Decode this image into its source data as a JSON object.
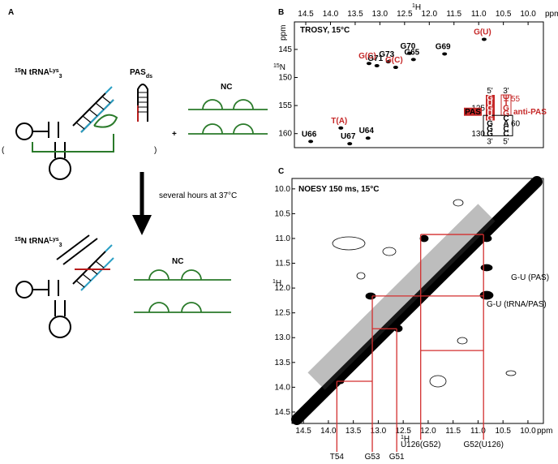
{
  "panel_a": {
    "label": "A",
    "trna_top": {
      "isotope": "15",
      "text": "N tRNA",
      "sup": "Lys",
      "sub": "3"
    },
    "pas": {
      "text": "PAS",
      "sub": "ds"
    },
    "open_paren": "(",
    "close_paren": ")",
    "plus": "+",
    "nc_top": "NC",
    "arrow_text": "several hours at 37°C",
    "trna_bottom": {
      "isotope": "15",
      "text": "N tRNA",
      "sup": "Lys",
      "sub": "3"
    },
    "nc_bottom": "NC"
  },
  "panel_b": {
    "label": "B",
    "title": "TROSY, 15°C",
    "x_label": {
      "sup": "1",
      "text": "H"
    },
    "x_unit": "ppm",
    "y_unit": "ppm",
    "y_label": {
      "sup": "15",
      "text": "N"
    },
    "xlim": [
      14.73,
      9.69
    ],
    "xticks": [
      14.5,
      {
        "value": 14,
        "label": "14.0"
      },
      13.5,
      {
        "value": 13,
        "label": "13.0"
      },
      12.5,
      {
        "value": 12,
        "label": "12.0"
      },
      11.5,
      {
        "value": 11,
        "label": "11.0"
      },
      10.5,
      {
        "value": 10,
        "label": "10.0"
      }
    ],
    "ylim": [
      140.1,
      162.5
    ],
    "yticks": [
      145,
      150,
      155,
      160
    ],
    "peaks": [
      {
        "label": "G(U)",
        "x": 10.89,
        "y": 143.2,
        "color": "#c62828"
      },
      {
        "label": "G69",
        "x": 11.69,
        "y": 145.8,
        "color": "#000000"
      },
      {
        "label": "G70",
        "x": 12.4,
        "y": 145.7,
        "color": "#000000"
      },
      {
        "label": "G65",
        "x": 12.32,
        "y": 146.8,
        "color": "#000000"
      },
      {
        "label": "G73",
        "x": 12.83,
        "y": 147.2,
        "color": "#000000"
      },
      {
        "label": "G71",
        "x": 13.06,
        "y": 147.9,
        "color": "#000000"
      },
      {
        "label": "G(C)",
        "x": 13.22,
        "y": 147.5,
        "color": "#c62828"
      },
      {
        "label": "G(C)",
        "x": 12.68,
        "y": 148.2,
        "color": "#c62828"
      },
      {
        "label": "T(A)",
        "x": 13.79,
        "y": 159.0,
        "color": "#c62828"
      },
      {
        "label": "U66",
        "x": 14.4,
        "y": 161.4,
        "color": "#000000"
      },
      {
        "label": "U67",
        "x": 13.61,
        "y": 161.8,
        "color": "#000000"
      },
      {
        "label": "U64",
        "x": 13.24,
        "y": 160.8,
        "color": "#000000"
      }
    ],
    "inset": {
      "top_left": "5'",
      "top_right": "3'",
      "bottom_left": "3'",
      "bottom_right": "5'",
      "left": [
        "G",
        "U",
        "G",
        "U",
        "G",
        "G",
        "G",
        "G"
      ],
      "right": [
        "Ψ",
        "T",
        "G",
        "G",
        "C",
        "A",
        "C",
        "C"
      ],
      "num_55": "55",
      "num_125": "125",
      "num_60": "60",
      "num_130": "130",
      "pas": "PAS",
      "anti_pas": "anti-PAS"
    }
  },
  "panel_c": {
    "label": "C",
    "title": "NOESY 150 ms, 15°C",
    "x_label": {
      "sup": "1",
      "text": "H"
    },
    "x_unit": "ppm",
    "y_label": {
      "sup": "1",
      "text": "H"
    },
    "xlim": [
      14.73,
      9.69
    ],
    "xticks": [
      14.5,
      {
        "value": 14,
        "label": "14.0"
      },
      13.5,
      {
        "value": 13,
        "label": "13.0"
      },
      12.5,
      {
        "value": 12,
        "label": "12.0"
      },
      11.5,
      {
        "value": 11,
        "label": "11.0"
      },
      10.5,
      {
        "value": 10,
        "label": "10.0"
      }
    ],
    "ylim": [
      9.79,
      14.73
    ],
    "yticks": [
      {
        "value": 10,
        "label": "10.0"
      },
      10.5,
      {
        "value": 11,
        "label": "11.0"
      },
      11.5,
      {
        "value": 12,
        "label": "12.0"
      },
      12.5,
      {
        "value": 13,
        "label": "13.0"
      },
      13.5,
      {
        "value": 14,
        "label": "14.0"
      },
      14.5
    ],
    "annotation_pas": "G-U (PAS)",
    "annotation_trna_pas": "G-U (tRNA/PAS)",
    "assignments": [
      {
        "label": "T54",
        "x": 13.83,
        "y": 13.88
      },
      {
        "label": "G53",
        "x": 13.12,
        "y": 12.16
      },
      {
        "label": "G51",
        "x": 12.63,
        "y": 12.82
      },
      {
        "label": "U126(G52)",
        "x": 12.15,
        "y": 10.92
      },
      {
        "label": "G52(U126)",
        "x": 10.89,
        "y": 10.92
      }
    ],
    "walk": [
      {
        "y": 10.92,
        "x1": 12.15,
        "x2": 10.89
      },
      {
        "y": 12.16,
        "x1": 13.12,
        "x2": 10.89
      },
      {
        "y": 13.26,
        "x1": 12.15,
        "x2": 10.89
      },
      {
        "y": 13.88,
        "x1": 13.83,
        "x2": 13.12
      },
      {
        "y": 12.82,
        "x1": 13.12,
        "x2": 12.63
      }
    ]
  }
}
